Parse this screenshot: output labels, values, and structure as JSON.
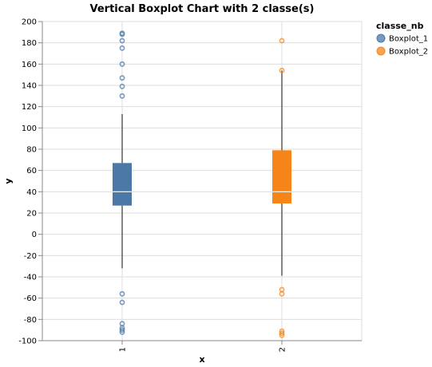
{
  "chart_data": {
    "type": "boxplot",
    "title": "Vertical Boxplot Chart with 2 classe(s)",
    "xlabel": "x",
    "ylabel": "y",
    "ylim": [
      -100,
      200
    ],
    "yticks": [
      -100,
      -80,
      -60,
      -40,
      -20,
      0,
      20,
      40,
      60,
      80,
      100,
      120,
      140,
      160,
      180,
      200
    ],
    "grid": true,
    "categories": [
      "1",
      "2"
    ],
    "legend": {
      "title": "classe_nb",
      "placement": "top-right",
      "entries": [
        "Boxplot_1",
        "Boxplot_2"
      ]
    },
    "series": [
      {
        "name": "Boxplot_1",
        "category": "1",
        "color": "#4c78a8",
        "whisker_low": -32,
        "q1": 27,
        "median": 40,
        "q3": 67,
        "whisker_high": 113,
        "outliers": [
          189,
          188,
          182,
          175,
          160,
          147,
          139,
          130,
          -56,
          -64,
          -84,
          -88,
          -90,
          -92
        ]
      },
      {
        "name": "Boxplot_2",
        "category": "2",
        "color": "#f58518",
        "whisker_low": -39,
        "q1": 29,
        "median": 40,
        "q3": 79,
        "whisker_high": 154,
        "outliers": [
          182,
          154,
          -52,
          -56,
          -91,
          -93,
          -95
        ]
      }
    ]
  }
}
